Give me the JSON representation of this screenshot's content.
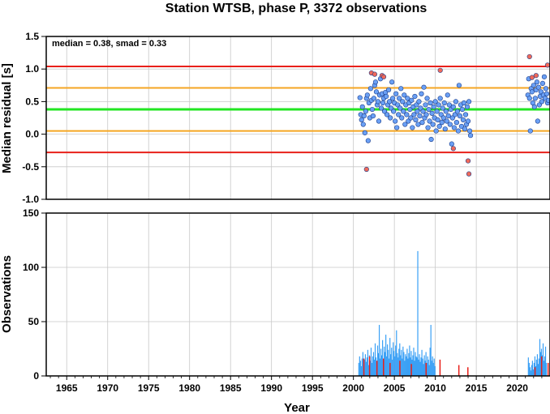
{
  "chart_data": [
    {
      "type": "scatter",
      "title": "Station WTSB, phase P, 3372 observations",
      "annotation": "median = 0.38, smad = 0.33",
      "xlabel": "",
      "ylabel": "Median residual [s]",
      "xlim": [
        1962.5,
        2024
      ],
      "ylim": [
        -1.0,
        1.5
      ],
      "grid": true,
      "xticks": [
        1965,
        1970,
        1975,
        1980,
        1985,
        1990,
        1995,
        2000,
        2005,
        2010,
        2015,
        2020
      ],
      "yticks": [
        "-1.0",
        "-0.5",
        "0.0",
        "0.5",
        "1.0",
        "1.5"
      ],
      "reference_lines": [
        {
          "y": 1.04,
          "color": "#e8201a"
        },
        {
          "y": 0.71,
          "color": "#f5a623"
        },
        {
          "y": 0.38,
          "color": "#22e622"
        },
        {
          "y": 0.05,
          "color": "#f5a623"
        },
        {
          "y": -0.28,
          "color": "#e8201a"
        }
      ],
      "series": [
        {
          "color": "#6aa0f5",
          "points": [
            [
              2000.8,
              0.56
            ],
            [
              2000.9,
              0.3
            ],
            [
              2001.0,
              0.22
            ],
            [
              2001.1,
              0.42
            ],
            [
              2001.2,
              0.15
            ],
            [
              2001.3,
              0.28
            ],
            [
              2001.4,
              0.02
            ],
            [
              2001.5,
              0.35
            ],
            [
              2001.6,
              0.55
            ],
            [
              2001.7,
              0.6
            ],
            [
              2001.8,
              -0.1
            ],
            [
              2001.9,
              0.48
            ],
            [
              2002.0,
              0.25
            ],
            [
              2002.1,
              0.7
            ],
            [
              2002.2,
              0.52
            ],
            [
              2002.3,
              0.38
            ],
            [
              2002.4,
              0.28
            ],
            [
              2002.5,
              0.55
            ],
            [
              2002.6,
              0.75
            ],
            [
              2002.7,
              0.8
            ],
            [
              2002.8,
              0.65
            ],
            [
              2002.9,
              0.45
            ],
            [
              2003.0,
              0.5
            ],
            [
              2003.1,
              0.2
            ],
            [
              2003.2,
              0.6
            ],
            [
              2003.3,
              0.85
            ],
            [
              2003.4,
              0.4
            ],
            [
              2003.5,
              0.62
            ],
            [
              2003.6,
              0.48
            ],
            [
              2003.7,
              0.55
            ],
            [
              2003.8,
              0.35
            ],
            [
              2003.9,
              0.64
            ],
            [
              2004.0,
              0.58
            ],
            [
              2004.1,
              0.3
            ],
            [
              2004.2,
              0.45
            ],
            [
              2004.3,
              0.68
            ],
            [
              2004.4,
              0.5
            ],
            [
              2004.5,
              0.25
            ],
            [
              2004.6,
              0.4
            ],
            [
              2004.7,
              0.8
            ],
            [
              2004.8,
              0.55
            ],
            [
              2004.9,
              0.35
            ],
            [
              2005.0,
              0.48
            ],
            [
              2005.1,
              0.2
            ],
            [
              2005.2,
              0.62
            ],
            [
              2005.3,
              0.1
            ],
            [
              2005.4,
              0.45
            ],
            [
              2005.5,
              0.3
            ],
            [
              2005.6,
              0.55
            ],
            [
              2005.7,
              0.4
            ],
            [
              2005.8,
              0.7
            ],
            [
              2005.9,
              0.25
            ],
            [
              2006.0,
              0.5
            ],
            [
              2006.1,
              0.35
            ],
            [
              2006.2,
              0.6
            ],
            [
              2006.3,
              0.15
            ],
            [
              2006.4,
              0.45
            ],
            [
              2006.5,
              0.3
            ],
            [
              2006.6,
              0.55
            ],
            [
              2006.7,
              0.2
            ],
            [
              2006.8,
              0.48
            ],
            [
              2006.9,
              0.38
            ],
            [
              2007.0,
              0.25
            ],
            [
              2007.1,
              0.52
            ],
            [
              2007.2,
              0.1
            ],
            [
              2007.3,
              0.42
            ],
            [
              2007.4,
              0.3
            ],
            [
              2007.5,
              0.58
            ],
            [
              2007.6,
              0.22
            ],
            [
              2007.7,
              0.45
            ],
            [
              2007.8,
              0.35
            ],
            [
              2007.9,
              0.15
            ],
            [
              2008.0,
              0.5
            ],
            [
              2008.1,
              0.28
            ],
            [
              2008.2,
              0.4
            ],
            [
              2008.3,
              0.62
            ],
            [
              2008.4,
              0.18
            ],
            [
              2008.5,
              0.35
            ],
            [
              2008.6,
              0.72
            ],
            [
              2008.7,
              0.25
            ],
            [
              2008.8,
              0.45
            ],
            [
              2008.9,
              0.3
            ],
            [
              2009.0,
              0.55
            ],
            [
              2009.1,
              0.1
            ],
            [
              2009.2,
              0.38
            ],
            [
              2009.3,
              0.2
            ],
            [
              2009.4,
              0.48
            ],
            [
              2009.5,
              -0.08
            ],
            [
              2009.6,
              0.32
            ],
            [
              2009.7,
              0.15
            ],
            [
              2009.8,
              0.42
            ],
            [
              2009.9,
              0.25
            ],
            [
              2010.0,
              0.5
            ],
            [
              2010.1,
              0.05
            ],
            [
              2010.2,
              0.35
            ],
            [
              2010.3,
              0.22
            ],
            [
              2010.4,
              0.45
            ],
            [
              2010.5,
              0.12
            ],
            [
              2010.6,
              0.55
            ],
            [
              2010.7,
              0.3
            ],
            [
              2010.8,
              0.18
            ],
            [
              2010.9,
              0.4
            ],
            [
              2011.0,
              0.25
            ],
            [
              2011.1,
              0.48
            ],
            [
              2011.2,
              0.08
            ],
            [
              2011.3,
              0.35
            ],
            [
              2011.4,
              0.2
            ],
            [
              2011.5,
              0.6
            ],
            [
              2011.6,
              0.28
            ],
            [
              2011.7,
              0.45
            ],
            [
              2011.8,
              0.15
            ],
            [
              2011.9,
              0.38
            ],
            [
              2012.0,
              -0.15
            ],
            [
              2012.1,
              0.25
            ],
            [
              2012.2,
              0.42
            ],
            [
              2012.3,
              0.1
            ],
            [
              2012.4,
              0.3
            ],
            [
              2012.5,
              0.5
            ],
            [
              2012.6,
              0.18
            ],
            [
              2012.7,
              0.35
            ],
            [
              2012.8,
              0.05
            ],
            [
              2012.9,
              0.75
            ],
            [
              2013.0,
              0.28
            ],
            [
              2013.1,
              0.45
            ],
            [
              2013.2,
              0.12
            ],
            [
              2013.3,
              0.38
            ],
            [
              2013.4,
              0.22
            ],
            [
              2013.5,
              0.48
            ],
            [
              2013.6,
              0.08
            ],
            [
              2013.7,
              0.3
            ],
            [
              2013.8,
              0.15
            ],
            [
              2013.9,
              0.42
            ],
            [
              2014.0,
              0.2
            ],
            [
              2014.1,
              0.5
            ],
            [
              2014.2,
              0.05
            ],
            [
              2014.3,
              -0.02
            ],
            [
              2021.3,
              0.6
            ],
            [
              2021.4,
              0.85
            ],
            [
              2021.5,
              0.55
            ],
            [
              2021.6,
              0.05
            ],
            [
              2021.7,
              0.7
            ],
            [
              2021.8,
              0.65
            ],
            [
              2021.9,
              0.48
            ],
            [
              2022.0,
              0.75
            ],
            [
              2022.1,
              0.42
            ],
            [
              2022.2,
              0.55
            ],
            [
              2022.3,
              0.68
            ],
            [
              2022.4,
              0.8
            ],
            [
              2022.5,
              0.2
            ],
            [
              2022.6,
              0.72
            ],
            [
              2022.7,
              0.45
            ],
            [
              2022.8,
              0.58
            ],
            [
              2022.9,
              0.65
            ],
            [
              2023.0,
              0.5
            ],
            [
              2023.1,
              0.78
            ],
            [
              2023.2,
              0.6
            ],
            [
              2023.3,
              0.88
            ],
            [
              2023.4,
              0.55
            ],
            [
              2023.5,
              0.7
            ],
            [
              2023.6,
              0.62
            ],
            [
              2023.7,
              0.48
            ],
            [
              2023.8,
              0.52
            ]
          ]
        },
        {
          "color": "#f06a5a",
          "points": [
            [
              2001.6,
              -0.54
            ],
            [
              2002.2,
              0.94
            ],
            [
              2002.6,
              0.92
            ],
            [
              2003.5,
              0.9
            ],
            [
              2003.7,
              0.88
            ],
            [
              2010.6,
              0.98
            ],
            [
              2012.2,
              -0.22
            ],
            [
              2014.0,
              -0.41
            ],
            [
              2014.1,
              -0.61
            ],
            [
              2021.5,
              1.19
            ],
            [
              2021.8,
              0.87
            ],
            [
              2022.3,
              0.9
            ],
            [
              2023.7,
              1.06
            ]
          ]
        }
      ]
    },
    {
      "type": "bar",
      "xlabel": "Year",
      "ylabel": "Observations",
      "xlim": [
        1962.5,
        2024
      ],
      "ylim": [
        0,
        150
      ],
      "grid": true,
      "xticks": [
        1965,
        1970,
        1975,
        1980,
        1985,
        1990,
        1995,
        2000,
        2005,
        2010,
        2015,
        2020
      ],
      "yticks": [
        "0",
        "50",
        "100",
        "150"
      ],
      "series": [
        {
          "color": "#3aa0f5",
          "x_start": 2000.6,
          "x_step": 0.1,
          "values": [
            12,
            18,
            14,
            9,
            16,
            22,
            11,
            15,
            20,
            13,
            17,
            24,
            10,
            19,
            14,
            26,
            12,
            18,
            22,
            15,
            30,
            17,
            13,
            28,
            21,
            47,
            16,
            25,
            19,
            33,
            14,
            27,
            22,
            38,
            18,
            29,
            24,
            16,
            35,
            20,
            26,
            15,
            31,
            23,
            18,
            28,
            42,
            21,
            17,
            25,
            30,
            19,
            24,
            16,
            27,
            22,
            14,
            20,
            18,
            25,
            16,
            21,
            28,
            17,
            23,
            15,
            19,
            26,
            14,
            22,
            18,
            17,
            115,
            15,
            20,
            13,
            17,
            24,
            16,
            11,
            19,
            14,
            22,
            12,
            18,
            15,
            10,
            26,
            47,
            14,
            18,
            12,
            16,
            9
          ],
          "segments": [
            {
              "x_start": 2021.3,
              "x_step": 0.1,
              "values": [
                17,
                12,
                8,
                5,
                10,
                14,
                6,
                12,
                18,
                9,
                15,
                20,
                11,
                16,
                34,
                22,
                25,
                19,
                30,
                14,
                18,
                27,
                12
              ]
            }
          ]
        },
        {
          "color": "#e8201a",
          "points": [
            [
              2001.2,
              16
            ],
            [
              2001.9,
              18
            ],
            [
              2002.8,
              14
            ],
            [
              2003.6,
              16
            ],
            [
              2004.4,
              12
            ],
            [
              2005.6,
              14
            ],
            [
              2007.0,
              11
            ],
            [
              2008.8,
              12
            ],
            [
              2010.5,
              15
            ],
            [
              2012.8,
              10
            ],
            [
              2013.9,
              8
            ],
            [
              2022.1,
              8
            ],
            [
              2022.9,
              18
            ],
            [
              2023.7,
              12
            ]
          ]
        }
      ]
    }
  ]
}
